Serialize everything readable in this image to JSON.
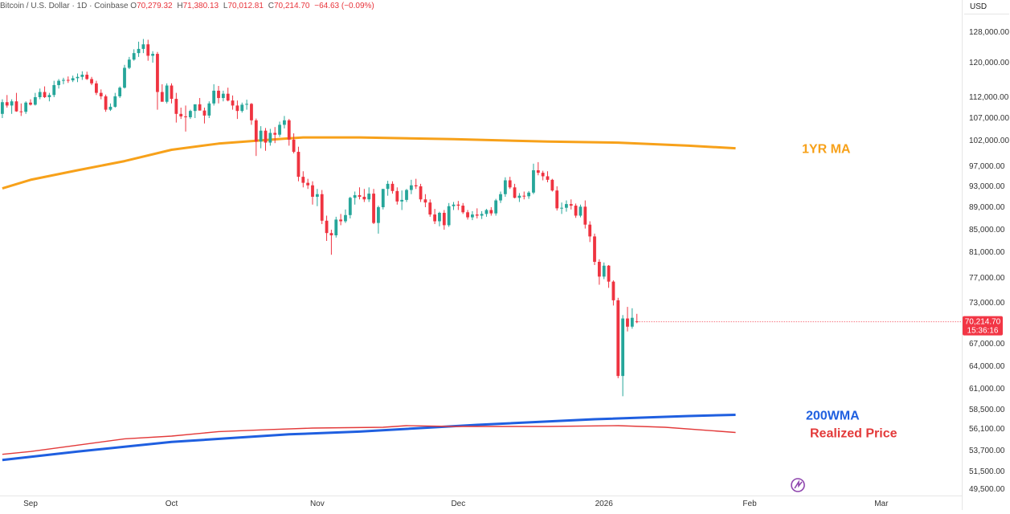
{
  "header": {
    "symbol": "Bitcoin / U.S. Dollar · 1D · Coinbase",
    "open_label": "O",
    "open": "70,279.32",
    "high_label": "H",
    "high": "71,380.13",
    "low_label": "L",
    "low": "70,012.81",
    "close_label": "C",
    "close": "70,214.70",
    "change": "−64.63 (−0.09%)"
  },
  "currency": "USD",
  "price_tag": {
    "price": "70,214.70",
    "countdown": "15:36:16"
  },
  "colors": {
    "up": "#26a69a",
    "down": "#ef3340",
    "ma1y": "#f7a11a",
    "wma200": "#1f5fe0",
    "realized": "#e33a3a",
    "tag_bg": "#f23645"
  },
  "icons": [
    "tradingview-logo-icon"
  ],
  "chart_data": {
    "type": "candlestick",
    "ylabel_ticks": [
      "128,000.00",
      "120,000.00",
      "112,000.00",
      "107,000.00",
      "102,000.00",
      "97,000.00",
      "93,000.00",
      "89,000.00",
      "85,000.00",
      "81,000.00",
      "77,000.00",
      "73,000.00",
      "67,000.00",
      "64,000.00",
      "61,000.00",
      "58,500.00",
      "56,100.00",
      "53,700.00",
      "51,500.00",
      "49,500.00"
    ],
    "xlabel_ticks": [
      "Sep",
      "Oct",
      "Nov",
      "Dec",
      "2026",
      "Feb",
      "Mar"
    ],
    "x_tick_days": [
      0,
      30,
      61,
      91,
      122,
      153,
      181
    ],
    "start": "2025-09-01",
    "day_offset_first": -6,
    "ylim": [
      49000,
      132000
    ],
    "candles": [
      [
        108000,
        111500,
        107000,
        110800
      ],
      [
        110800,
        112500,
        109500,
        110000
      ],
      [
        110000,
        111500,
        108000,
        111000
      ],
      [
        111000,
        113000,
        108500,
        108600
      ],
      [
        108600,
        110500,
        107500,
        108500
      ],
      [
        108500,
        111000,
        108000,
        110700
      ],
      [
        110700,
        111500,
        110000,
        110200
      ],
      [
        110200,
        113000,
        110000,
        112000
      ],
      [
        112000,
        114000,
        111500,
        113200
      ],
      [
        113200,
        114500,
        111800,
        112000
      ],
      [
        112000,
        113000,
        111000,
        112500
      ],
      [
        112500,
        115800,
        112000,
        114800
      ],
      [
        114800,
        116200,
        114000,
        115800
      ],
      [
        115800,
        116500,
        115000,
        116000
      ],
      [
        116000,
        116800,
        115300,
        115900
      ],
      [
        115900,
        117000,
        115500,
        116400
      ],
      [
        116400,
        117500,
        115500,
        116700
      ],
      [
        116700,
        118000,
        116000,
        117200
      ],
      [
        117200,
        117900,
        116000,
        116200
      ],
      [
        116200,
        116700,
        114800,
        115200
      ],
      [
        115200,
        115800,
        112500,
        113000
      ],
      [
        113000,
        113800,
        111500,
        112200
      ],
      [
        112200,
        112600,
        108500,
        109000
      ],
      [
        109000,
        110500,
        108700,
        109700
      ],
      [
        109700,
        113000,
        109500,
        112200
      ],
      [
        112200,
        114500,
        111800,
        114200
      ],
      [
        114200,
        119500,
        114000,
        118800
      ],
      [
        118800,
        121500,
        118500,
        120800
      ],
      [
        120800,
        123500,
        120500,
        122500
      ],
      [
        122500,
        125500,
        121500,
        123600
      ],
      [
        123600,
        126200,
        122500,
        124800
      ],
      [
        124800,
        126000,
        120500,
        121800
      ],
      [
        121800,
        123000,
        120000,
        122300
      ],
      [
        122300,
        122800,
        109000,
        113200
      ],
      [
        113200,
        115000,
        111000,
        110900
      ],
      [
        110900,
        115200,
        110500,
        114700
      ],
      [
        114700,
        115200,
        110500,
        111600
      ],
      [
        111600,
        113000,
        106000,
        108000
      ],
      [
        108000,
        109500,
        106800,
        107400
      ],
      [
        107400,
        110000,
        104000,
        107200
      ],
      [
        107200,
        109000,
        106800,
        108700
      ],
      [
        108700,
        110000,
        107000,
        110300
      ],
      [
        110300,
        111800,
        108800,
        108800
      ],
      [
        108800,
        109500,
        105800,
        107600
      ],
      [
        107600,
        111000,
        107000,
        110500
      ],
      [
        110500,
        115000,
        110000,
        113500
      ],
      [
        113500,
        114600,
        110500,
        111800
      ],
      [
        111800,
        113500,
        111000,
        112800
      ],
      [
        112800,
        114200,
        111000,
        111200
      ],
      [
        111200,
        112400,
        109000,
        110000
      ],
      [
        110000,
        111200,
        106800,
        108700
      ],
      [
        108700,
        110700,
        108300,
        110200
      ],
      [
        110200,
        111400,
        109000,
        110400
      ],
      [
        110400,
        110600,
        105500,
        106500
      ],
      [
        106500,
        106900,
        99000,
        101800
      ],
      [
        101800,
        105200,
        100500,
        104200
      ],
      [
        104200,
        104800,
        100000,
        101600
      ],
      [
        101600,
        104600,
        101000,
        103700
      ],
      [
        103700,
        105000,
        101500,
        103300
      ],
      [
        103300,
        106200,
        102800,
        105500
      ],
      [
        105500,
        107500,
        104700,
        106500
      ],
      [
        106500,
        106800,
        101000,
        102200
      ],
      [
        102200,
        103600,
        99500,
        99800
      ],
      [
        99800,
        100800,
        94000,
        94900
      ],
      [
        94900,
        96000,
        92800,
        93700
      ],
      [
        93700,
        94500,
        92500,
        93200
      ],
      [
        93200,
        94000,
        89500,
        91000
      ],
      [
        91000,
        92500,
        89200,
        91500
      ],
      [
        91500,
        92300,
        86000,
        86600
      ],
      [
        86600,
        87500,
        83000,
        84400
      ],
      [
        84400,
        85000,
        80600,
        84000
      ],
      [
        84000,
        87300,
        83600,
        86800
      ],
      [
        86800,
        87800,
        85800,
        86500
      ],
      [
        86500,
        88600,
        86200,
        87600
      ],
      [
        87600,
        91000,
        87000,
        90800
      ],
      [
        90800,
        92000,
        89500,
        91300
      ],
      [
        91300,
        92800,
        90500,
        91000
      ],
      [
        91000,
        92500,
        90000,
        90500
      ],
      [
        90500,
        92800,
        90000,
        91600
      ],
      [
        91600,
        92500,
        86000,
        86200
      ],
      [
        86200,
        89300,
        84300,
        89000
      ],
      [
        89000,
        92500,
        88600,
        92500
      ],
      [
        92500,
        94100,
        91200,
        93500
      ],
      [
        93500,
        94000,
        91600,
        92100
      ],
      [
        92100,
        92800,
        89500,
        90100
      ],
      [
        90100,
        92200,
        88500,
        90400
      ],
      [
        90400,
        92500,
        90000,
        92300
      ],
      [
        92300,
        94300,
        91500,
        93200
      ],
      [
        93200,
        94500,
        92500,
        93000
      ],
      [
        93000,
        93500,
        90000,
        90500
      ],
      [
        90500,
        91500,
        89000,
        89900
      ],
      [
        89900,
        90500,
        87300,
        87700
      ],
      [
        87700,
        88700,
        86000,
        86500
      ],
      [
        86500,
        88200,
        85600,
        88000
      ],
      [
        88000,
        88500,
        85000,
        85800
      ],
      [
        85800,
        89800,
        85500,
        89200
      ],
      [
        89200,
        90000,
        88500,
        89500
      ],
      [
        89500,
        90200,
        88500,
        89300
      ],
      [
        89300,
        89800,
        87800,
        88100
      ],
      [
        88100,
        88500,
        86800,
        87200
      ],
      [
        87200,
        88300,
        86700,
        87700
      ],
      [
        87700,
        88800,
        87000,
        87500
      ],
      [
        87500,
        88300,
        86900,
        87800
      ],
      [
        87800,
        88700,
        87300,
        88500
      ],
      [
        88500,
        89000,
        87500,
        87900
      ],
      [
        87900,
        90600,
        87500,
        90300
      ],
      [
        90300,
        92000,
        89800,
        91500
      ],
      [
        91500,
        94800,
        91000,
        94200
      ],
      [
        94200,
        94900,
        92500,
        92800
      ],
      [
        92800,
        93500,
        90700,
        90800
      ],
      [
        90800,
        91700,
        90000,
        91200
      ],
      [
        91200,
        92000,
        90500,
        91100
      ],
      [
        91100,
        92100,
        90600,
        91800
      ],
      [
        91800,
        97500,
        91500,
        96200
      ],
      [
        96200,
        97800,
        95200,
        95700
      ],
      [
        95700,
        96100,
        94200,
        95000
      ],
      [
        95000,
        96000,
        93800,
        94300
      ],
      [
        94300,
        94500,
        92000,
        92200
      ],
      [
        92200,
        93000,
        88400,
        88800
      ],
      [
        88800,
        89900,
        87800,
        88900
      ],
      [
        88900,
        90300,
        88200,
        89600
      ],
      [
        89600,
        90500,
        88600,
        89300
      ],
      [
        89300,
        89700,
        87100,
        87500
      ],
      [
        87500,
        89500,
        87200,
        89100
      ],
      [
        89100,
        90300,
        85200,
        85900
      ],
      [
        85900,
        86500,
        82800,
        83800
      ],
      [
        83800,
        84300,
        79000,
        79500
      ],
      [
        79500,
        79900,
        75900,
        77200
      ],
      [
        77200,
        79400,
        76800,
        78900
      ],
      [
        78900,
        79000,
        75400,
        76400
      ],
      [
        76400,
        76600,
        72600,
        73400
      ],
      [
        73400,
        73800,
        62400,
        62700
      ],
      [
        62700,
        71200,
        60100,
        70700
      ],
      [
        70700,
        72400,
        68800,
        69500
      ],
      [
        69500,
        72200,
        69200,
        70800
      ],
      [
        70279.32,
        71380.13,
        70012.81,
        70214.7
      ]
    ],
    "series": [
      {
        "name": "1YR MA",
        "points": [
          [
            -6,
            92600
          ],
          [
            0,
            94300
          ],
          [
            10,
            96200
          ],
          [
            20,
            98000
          ],
          [
            30,
            100200
          ],
          [
            40,
            101400
          ],
          [
            50,
            102100
          ],
          [
            55,
            102500
          ],
          [
            58,
            102700
          ],
          [
            70,
            102700
          ],
          [
            90,
            102300
          ],
          [
            110,
            101800
          ],
          [
            125,
            101600
          ],
          [
            140,
            101000
          ],
          [
            150,
            100500
          ]
        ]
      },
      {
        "name": "200WMA",
        "points": [
          [
            -6,
            52700
          ],
          [
            10,
            53600
          ],
          [
            30,
            54650
          ],
          [
            55,
            55500
          ],
          [
            70,
            55800
          ],
          [
            95,
            56600
          ],
          [
            120,
            57300
          ],
          [
            140,
            57700
          ],
          [
            150,
            57850
          ]
        ]
      },
      {
        "name": "Realized Price",
        "points": [
          [
            -6,
            53300
          ],
          [
            0,
            53600
          ],
          [
            10,
            54300
          ],
          [
            20,
            55000
          ],
          [
            30,
            55300
          ],
          [
            40,
            55800
          ],
          [
            50,
            56000
          ],
          [
            60,
            56200
          ],
          [
            75,
            56300
          ],
          [
            80,
            56500
          ],
          [
            90,
            56400
          ],
          [
            110,
            56400
          ],
          [
            125,
            56500
          ],
          [
            135,
            56300
          ],
          [
            145,
            55900
          ],
          [
            150,
            55700
          ]
        ]
      }
    ]
  }
}
